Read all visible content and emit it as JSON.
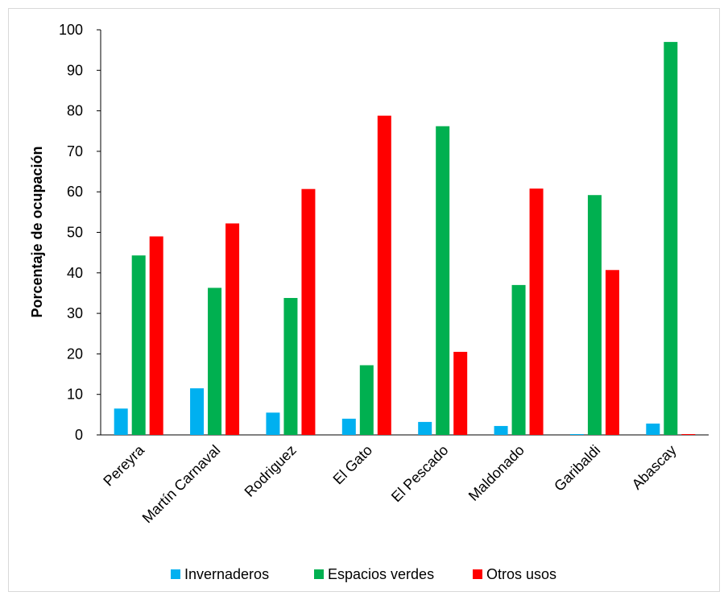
{
  "chart_data": {
    "type": "bar",
    "title": "",
    "xlabel": "",
    "ylabel": "Porcentaje de ocupación",
    "ylim": [
      0,
      100
    ],
    "yticks": [
      0,
      10,
      20,
      30,
      40,
      50,
      60,
      70,
      80,
      90,
      100
    ],
    "categories": [
      "Pereyra",
      "Martín Carnaval",
      "Rodriguez",
      "El Gato",
      "El Pescado",
      "Maldonado",
      "Garibaldi",
      "Abascay"
    ],
    "series": [
      {
        "name": "Invernaderos",
        "color": "#00b0f0",
        "values": [
          6.5,
          11.5,
          5.5,
          4.0,
          3.2,
          2.2,
          0.2,
          2.8
        ]
      },
      {
        "name": "Espacios verdes",
        "color": "#00b050",
        "values": [
          44.3,
          36.3,
          33.8,
          17.2,
          76.2,
          37.0,
          59.2,
          97.0
        ]
      },
      {
        "name": "Otros usos",
        "color": "#ff0000",
        "values": [
          49.0,
          52.2,
          60.7,
          78.8,
          20.5,
          60.8,
          40.7,
          0.2
        ]
      }
    ],
    "grid": false,
    "legend": "bottom"
  }
}
